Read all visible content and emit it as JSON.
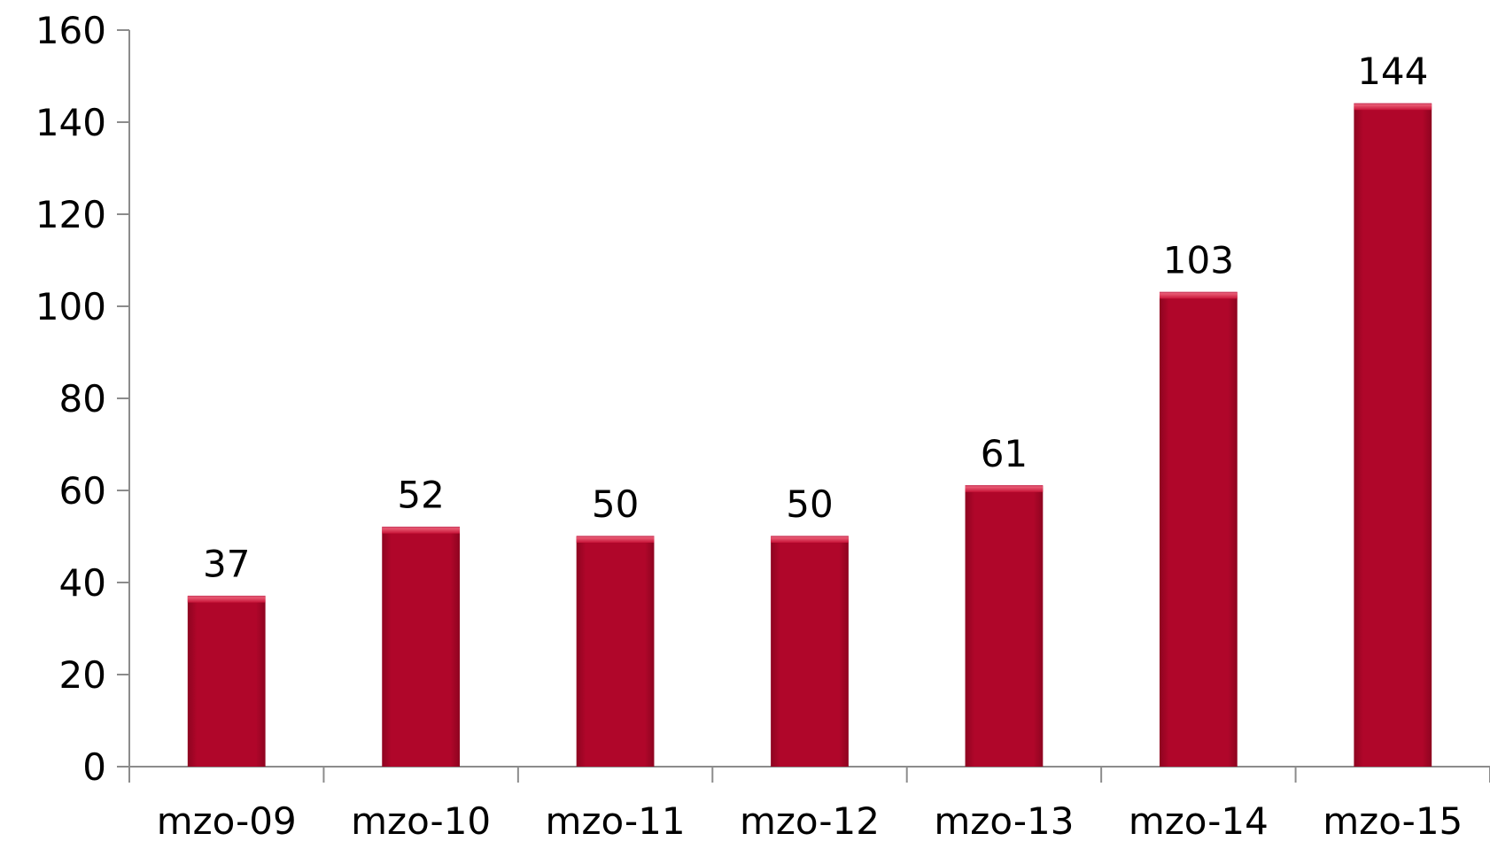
{
  "chart_data": {
    "type": "bar",
    "title": "",
    "xlabel": "",
    "ylabel": "",
    "categories": [
      "mzo-09",
      "mzo-10",
      "mzo-11",
      "mzo-12",
      "mzo-13",
      "mzo-14",
      "mzo-15"
    ],
    "values": [
      37,
      52,
      50,
      50,
      61,
      103,
      144
    ],
    "data_labels": [
      "37",
      "52",
      "50",
      "50",
      "61",
      "103",
      "144"
    ],
    "ylim": [
      0,
      160
    ],
    "yticks": [
      0,
      20,
      40,
      60,
      80,
      100,
      120,
      140,
      160
    ],
    "ytick_labels": [
      "0",
      "20",
      "40",
      "60",
      "80",
      "100",
      "120",
      "140",
      "160"
    ],
    "grid": false,
    "legend": "none",
    "colors": {
      "bar": "#b0062a",
      "bar_top": "#e0334f",
      "axis": "#8c8c8c"
    }
  }
}
